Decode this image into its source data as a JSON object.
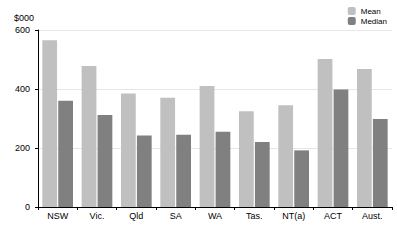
{
  "chart_data": {
    "type": "bar",
    "y_label": "$000",
    "categories": [
      "NSW",
      "Vic.",
      "Qld",
      "SA",
      "WA",
      "Tas.",
      "NT(a)",
      "ACT",
      "Aust."
    ],
    "series": [
      {
        "name": "Mean",
        "color": "#c0c0c0",
        "values": [
          565,
          478,
          385,
          370,
          410,
          325,
          345,
          502,
          468
        ]
      },
      {
        "name": "Median",
        "color": "#808080",
        "values": [
          360,
          312,
          242,
          245,
          255,
          220,
          192,
          398,
          298
        ]
      }
    ],
    "ylim": [
      0,
      600
    ],
    "yticks": [
      0,
      200,
      400,
      600
    ],
    "grid": true,
    "legend": "top-right"
  }
}
